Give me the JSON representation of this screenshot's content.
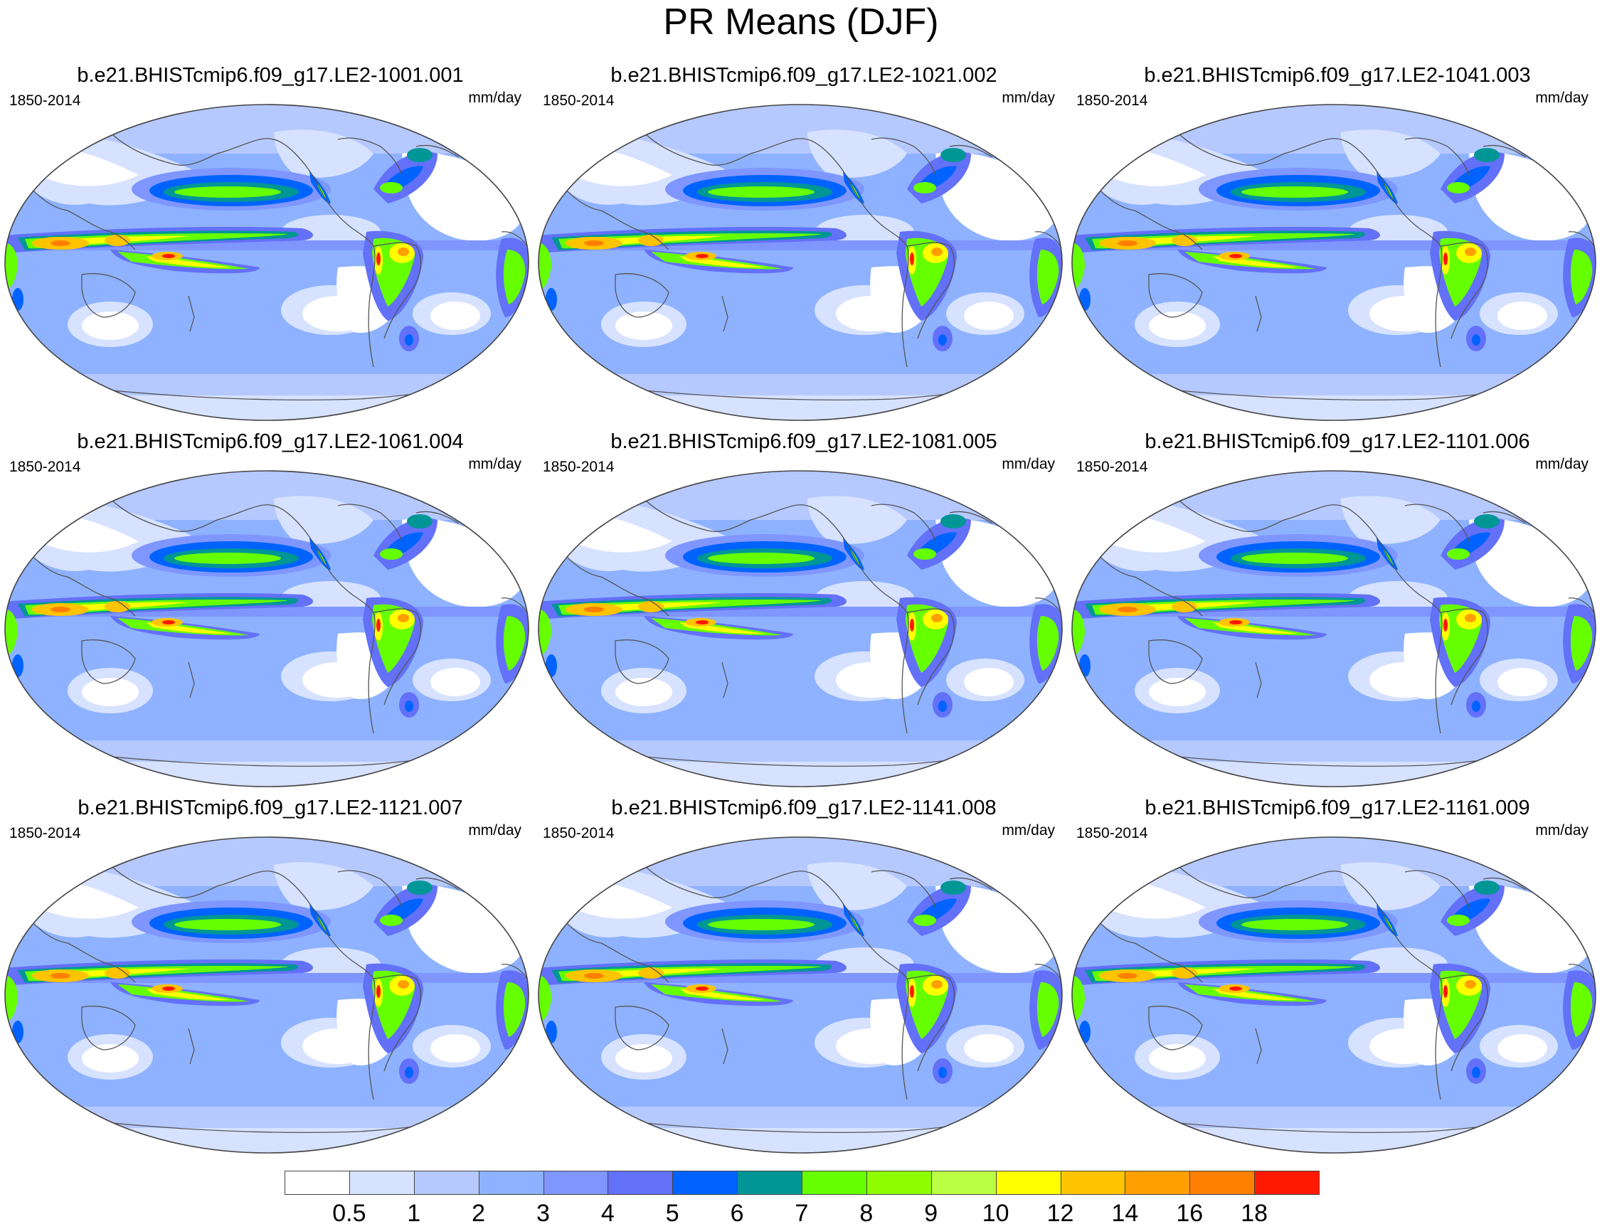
{
  "title": "PR Means (DJF)",
  "panels": [
    {
      "title": "b.e21.BHISTcmip6.f09_g17.LE2-1001.001",
      "period": "1850-2014",
      "units": "mm/day"
    },
    {
      "title": "b.e21.BHISTcmip6.f09_g17.LE2-1021.002",
      "period": "1850-2014",
      "units": "mm/day"
    },
    {
      "title": "b.e21.BHISTcmip6.f09_g17.LE2-1041.003",
      "period": "1850-2014",
      "units": "mm/day"
    },
    {
      "title": "b.e21.BHISTcmip6.f09_g17.LE2-1061.004",
      "period": "1850-2014",
      "units": "mm/day"
    },
    {
      "title": "b.e21.BHISTcmip6.f09_g17.LE2-1081.005",
      "period": "1850-2014",
      "units": "mm/day"
    },
    {
      "title": "b.e21.BHISTcmip6.f09_g17.LE2-1101.006",
      "period": "1850-2014",
      "units": "mm/day"
    },
    {
      "title": "b.e21.BHISTcmip6.f09_g17.LE2-1121.007",
      "period": "1850-2014",
      "units": "mm/day"
    },
    {
      "title": "b.e21.BHISTcmip6.f09_g17.LE2-1141.008",
      "period": "1850-2014",
      "units": "mm/day"
    },
    {
      "title": "b.e21.BHISTcmip6.f09_g17.LE2-1161.009",
      "period": "1850-2014",
      "units": "mm/day"
    }
  ],
  "colorbar": {
    "levels": [
      "0.5",
      "1",
      "2",
      "3",
      "4",
      "5",
      "6",
      "7",
      "8",
      "9",
      "10",
      "12",
      "14",
      "16",
      "18"
    ],
    "colors": [
      "#ffffff",
      "#d6e2ff",
      "#b5c9ff",
      "#8eb2ff",
      "#7f96ff",
      "#6370f8",
      "#0063ff",
      "#009696",
      "#66ff00",
      "#8fff00",
      "#bbff44",
      "#ffff00",
      "#ffc400",
      "#ff9f00",
      "#ff7f00",
      "#ff1900"
    ]
  }
}
